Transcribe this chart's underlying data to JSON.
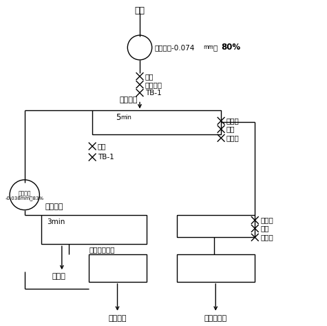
{
  "background_color": "#ffffff",
  "text_color": "#000000",
  "line_color": "#000000",
  "yuanku_label": "原矿",
  "mill1_label_pre": "磨矿细度-0.074",
  "mill1_label_mm": "mm",
  "mill1_label_post": "占",
  "mill1_label_bold": "80%",
  "reagents1": [
    "石灰",
    "乙硫氮酯",
    "TB-1"
  ],
  "step1_label": "一步粗选",
  "step1_inner": "5",
  "step1_inner_min": "min",
  "reagents_right1": [
    "乙硫氮",
    "黄药",
    "松酯由"
  ],
  "mill2_label1": "磨矿细度",
  "mill2_label2": "-0.038mm占83%",
  "reagents2_left": [
    "石灰",
    "TB-1"
  ],
  "step2_label": "二步精选",
  "step2_inner": "3min",
  "reagents_right2": [
    "乙硫氮",
    "黄药",
    "松酯由"
  ],
  "step3_label": "三步摇床重选",
  "tongjinju": "铜精矿",
  "yaochuang": "摇床尾矿",
  "cucuan": "粗扫选尾矿"
}
